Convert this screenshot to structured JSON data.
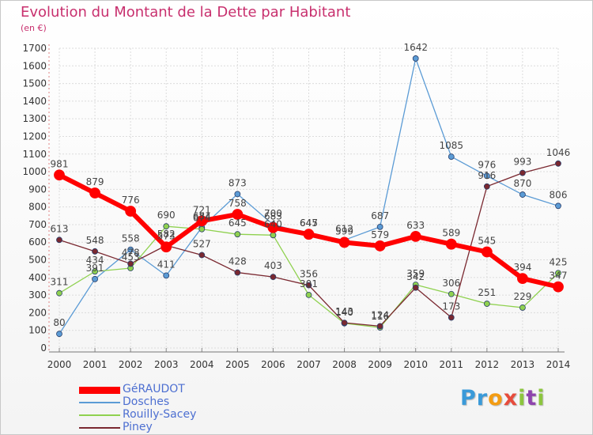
{
  "header": {
    "title": "Evolution du Montant de la Dette par Habitant",
    "subtitle": "(en €)"
  },
  "logo": {
    "text": "Proxiti",
    "letters": [
      {
        "ch": "P",
        "color": "#3a9ad9"
      },
      {
        "ch": "r",
        "color": "#3a9ad9"
      },
      {
        "ch": "o",
        "color": "#f39c12"
      },
      {
        "ch": "x",
        "color": "#e74c3c"
      },
      {
        "ch": "i",
        "color": "#8cc63f"
      },
      {
        "ch": "t",
        "color": "#8e44ad"
      },
      {
        "ch": "i",
        "color": "#8cc63f"
      }
    ]
  },
  "chart_data": {
    "type": "line",
    "x": [
      "2000",
      "2001",
      "2002",
      "2003",
      "2004",
      "2005",
      "2006",
      "2007",
      "2008",
      "2009",
      "2010",
      "2011",
      "2012",
      "2013",
      "2014"
    ],
    "ylim": [
      0,
      1700
    ],
    "yticks": [
      0,
      100,
      200,
      300,
      400,
      500,
      600,
      700,
      800,
      900,
      1000,
      1100,
      1200,
      1300,
      1400,
      1500,
      1600,
      1700
    ],
    "grid": true,
    "legend_position": "bottom-left",
    "series": [
      {
        "name": "Dosches",
        "color": "#5b9bd5",
        "stroke": 1.3,
        "marker": 3.5,
        "values": [
          80,
          391,
          558,
          411,
          684,
          873,
          700,
          647,
          612,
          687,
          1642,
          1085,
          976,
          870,
          806
        ],
        "labels": [
          "80",
          "391",
          "558",
          "411",
          "684",
          "873",
          "700",
          "647",
          "612",
          "687",
          "1642",
          "1085",
          "976",
          "870",
          "806"
        ]
      },
      {
        "name": "Rouilly-Sacey",
        "color": "#8fd14f",
        "stroke": 1.3,
        "marker": 3.5,
        "values": [
          311,
          434,
          453,
          690,
          674,
          645,
          640,
          301,
          140,
          116,
          359,
          306,
          251,
          229,
          425
        ],
        "labels": [
          "311",
          "434",
          "453",
          "690",
          "674",
          "645",
          "640",
          "301",
          "140",
          "116",
          "359",
          "306",
          "251",
          "229",
          "425"
        ]
      },
      {
        "name": "Piney",
        "color": "#7a2830",
        "stroke": 1.3,
        "marker": 3.5,
        "values": [
          613,
          548,
          478,
          582,
          527,
          428,
          403,
          356,
          143,
          124,
          342,
          173,
          916,
          993,
          1046
        ],
        "labels": [
          "613",
          "548",
          "478",
          "582",
          "527",
          "428",
          "403",
          "356",
          "143",
          "124",
          "342",
          "173",
          "916",
          "993",
          "1046"
        ]
      },
      {
        "name": "GéRAUDOT",
        "color": "#ff0000",
        "stroke": 6,
        "marker": 6.5,
        "values": [
          981,
          879,
          776,
          573,
          721,
          758,
          683,
          645,
          599,
          579,
          633,
          589,
          545,
          394,
          347
        ],
        "labels": [
          "981",
          "879",
          "776",
          "573",
          "721",
          "758",
          "683",
          "645",
          "599",
          "579",
          "633",
          "589",
          "545",
          "394",
          "347"
        ]
      }
    ],
    "legend_order": [
      "GéRAUDOT",
      "Dosches",
      "Rouilly-Sacey",
      "Piney"
    ]
  }
}
